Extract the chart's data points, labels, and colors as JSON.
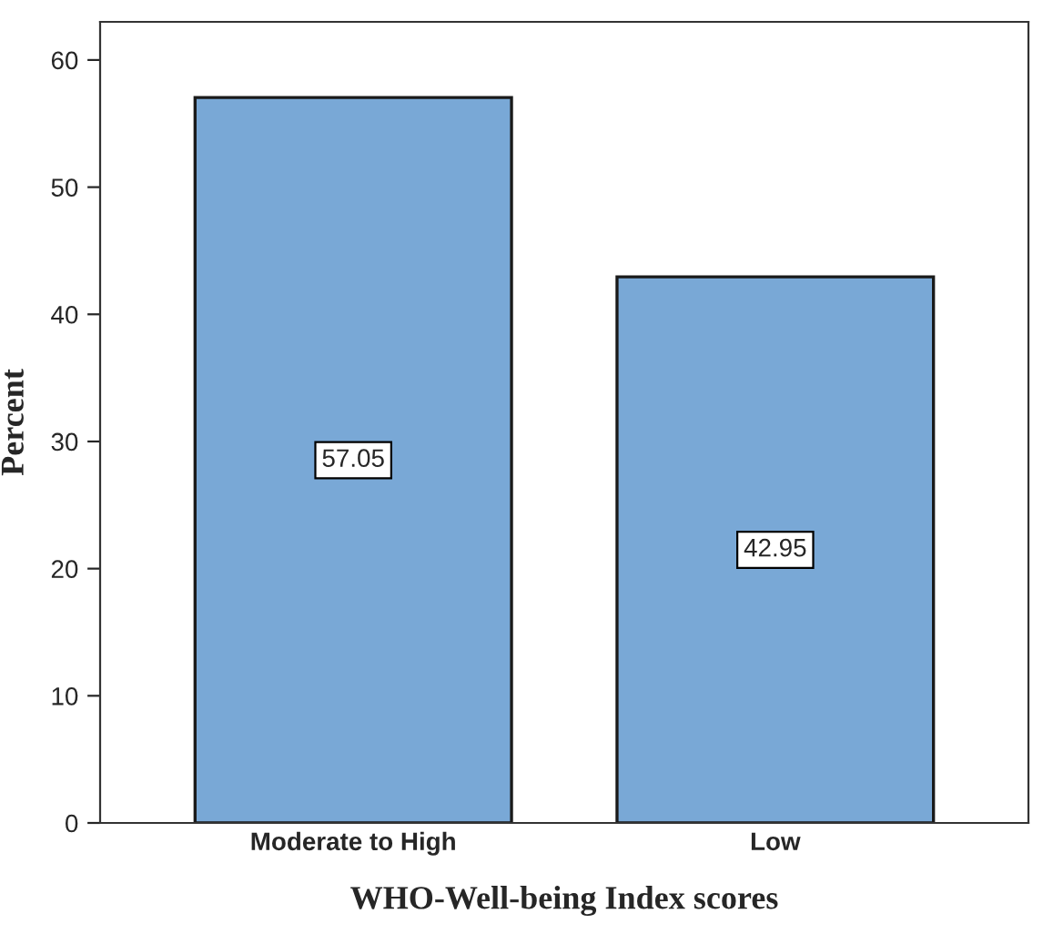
{
  "chart_data": {
    "type": "bar",
    "xlabel": "WHO-Well-being Index scores",
    "ylabel": "Percent",
    "categories": [
      "Moderate to High",
      "Low"
    ],
    "series": [
      {
        "color": "#79a8d6",
        "values": [
          57.05,
          42.95
        ]
      }
    ],
    "ylim": [
      0,
      63
    ],
    "yticks": [
      0,
      10,
      20,
      30,
      40,
      50,
      60
    ],
    "grid": false,
    "legend": false,
    "data_labels": true
  }
}
